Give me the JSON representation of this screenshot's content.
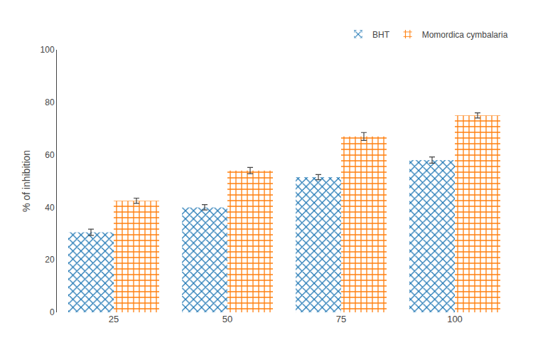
{
  "chart_data": {
    "type": "bar",
    "categories": [
      "25",
      "50",
      "75",
      "100"
    ],
    "series": [
      {
        "name": "BHT",
        "values": [
          30.5,
          40.0,
          51.5,
          58.0
        ],
        "errors": [
          1.2,
          1.0,
          1.0,
          1.2
        ]
      },
      {
        "name": "Momordica cymbalaria",
        "values": [
          42.5,
          54.0,
          67.0,
          75.0
        ],
        "errors": [
          1.0,
          1.2,
          1.5,
          1.0
        ]
      }
    ],
    "ylabel": "% of inhibition",
    "ylim": [
      0,
      100
    ],
    "yticks": [
      0,
      20,
      40,
      60,
      80,
      100
    ],
    "grid": false,
    "legend": "upper right"
  }
}
